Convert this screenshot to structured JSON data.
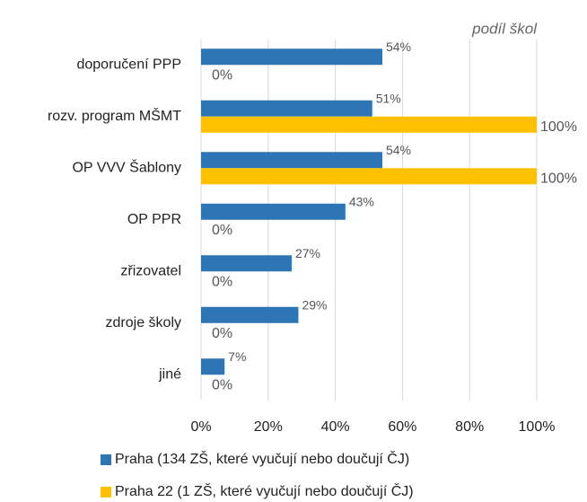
{
  "chart_data": {
    "type": "bar",
    "orientation": "horizontal",
    "annotation": "podíl škol",
    "categories": [
      "doporučení PPP",
      "rozv. program MŠMT",
      "OP VVV Šablony",
      "OP PPR",
      "zřizovatel",
      "zdroje školy",
      "jiné"
    ],
    "series": [
      {
        "name": "Praha (134 ZŠ, které vyučují nebo doučují ČJ)",
        "color": "#2e75b6",
        "values": [
          54,
          51,
          54,
          43,
          27,
          29,
          7
        ],
        "value_labels": [
          "54%",
          "51%",
          "54%",
          "43%",
          "27%",
          "29%",
          "7%"
        ]
      },
      {
        "name": "Praha 22 (1 ZŠ, které vyučují nebo doučují ČJ)",
        "color": "#ffc000",
        "values": [
          0,
          100,
          100,
          0,
          0,
          0,
          0
        ],
        "value_labels": [
          "0%",
          "100%",
          "100%",
          "0%",
          "0%",
          "0%",
          "0%"
        ]
      }
    ],
    "xlim": [
      0,
      100
    ],
    "xticks": [
      {
        "value": 0,
        "label": "0%"
      },
      {
        "value": 20,
        "label": "20%"
      },
      {
        "value": 40,
        "label": "40%"
      },
      {
        "value": 60,
        "label": "60%"
      },
      {
        "value": 80,
        "label": "80%"
      },
      {
        "value": 100,
        "label": "100%"
      }
    ],
    "grid": true
  }
}
